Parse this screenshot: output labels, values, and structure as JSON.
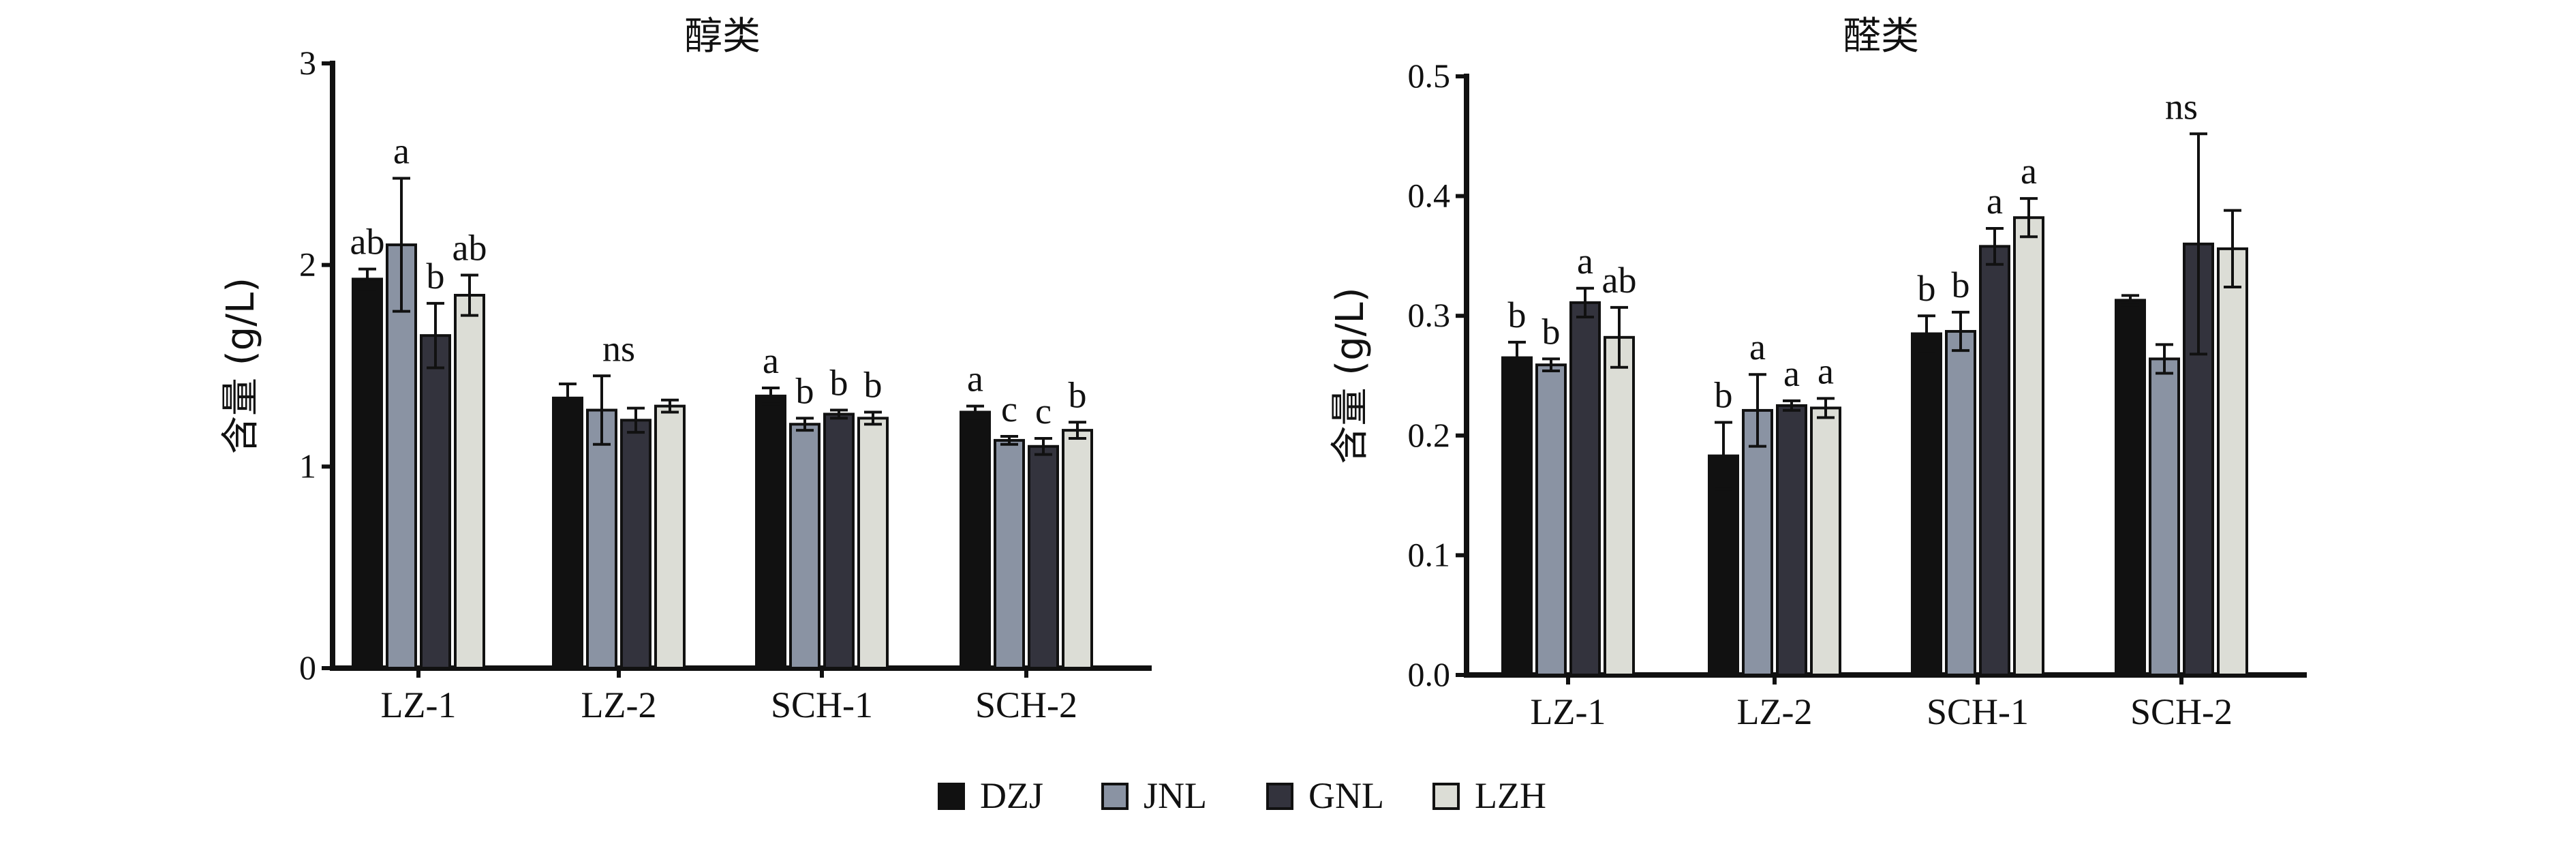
{
  "series_names": [
    "DZJ",
    "JNL",
    "GNL",
    "LZH"
  ],
  "colors": [
    "#111111",
    "#8a93a3",
    "#33333d",
    "#dcddd6"
  ],
  "chart_data": [
    {
      "type": "bar",
      "title": "醇类",
      "ylabel": "含量 (g/L)",
      "xlabel": "",
      "ylim": [
        0,
        3
      ],
      "yticks": [
        0,
        1,
        2,
        3
      ],
      "ytick_labels": [
        "0",
        "1",
        "2",
        "3"
      ],
      "categories": [
        "LZ-1",
        "LZ-2",
        "SCH-1",
        "SCH-2"
      ],
      "series": [
        {
          "name": "DZJ",
          "values": [
            1.93,
            1.34,
            1.35,
            1.27
          ],
          "errors": [
            0.05,
            0.07,
            0.04,
            0.03
          ]
        },
        {
          "name": "JNL",
          "values": [
            2.1,
            1.28,
            1.21,
            1.13
          ],
          "errors": [
            0.33,
            0.17,
            0.03,
            0.02
          ]
        },
        {
          "name": "GNL",
          "values": [
            1.65,
            1.23,
            1.26,
            1.1
          ],
          "errors": [
            0.16,
            0.06,
            0.02,
            0.04
          ]
        },
        {
          "name": "LZH",
          "values": [
            1.85,
            1.3,
            1.24,
            1.18
          ],
          "errors": [
            0.1,
            0.03,
            0.03,
            0.04
          ]
        }
      ],
      "annotations": [
        {
          "category": "LZ-1",
          "series": "DZJ",
          "text": "ab"
        },
        {
          "category": "LZ-1",
          "series": "JNL",
          "text": "a"
        },
        {
          "category": "LZ-1",
          "series": "GNL",
          "text": "b"
        },
        {
          "category": "LZ-1",
          "series": "LZH",
          "text": "ab"
        },
        {
          "category": "LZ-2",
          "text": "ns"
        },
        {
          "category": "SCH-1",
          "series": "DZJ",
          "text": "a"
        },
        {
          "category": "SCH-1",
          "series": "JNL",
          "text": "b"
        },
        {
          "category": "SCH-1",
          "series": "GNL",
          "text": "b"
        },
        {
          "category": "SCH-1",
          "series": "LZH",
          "text": "b"
        },
        {
          "category": "SCH-2",
          "series": "DZJ",
          "text": "a"
        },
        {
          "category": "SCH-2",
          "series": "JNL",
          "text": "c"
        },
        {
          "category": "SCH-2",
          "series": "GNL",
          "text": "c"
        },
        {
          "category": "SCH-2",
          "series": "LZH",
          "text": "b"
        }
      ]
    },
    {
      "type": "bar",
      "title": "醛类",
      "ylabel": "含量 (g/L)",
      "xlabel": "",
      "ylim": [
        0,
        0.5
      ],
      "yticks": [
        0,
        0.1,
        0.2,
        0.3,
        0.4,
        0.5
      ],
      "ytick_labels": [
        "0.0",
        "0.1",
        "0.2",
        "0.3",
        "0.4",
        "0.5"
      ],
      "categories": [
        "LZ-1",
        "LZ-2",
        "SCH-1",
        "SCH-2"
      ],
      "series": [
        {
          "name": "DZJ",
          "values": [
            0.265,
            0.183,
            0.285,
            0.313
          ],
          "errors": [
            0.013,
            0.028,
            0.015,
            0.004
          ]
        },
        {
          "name": "JNL",
          "values": [
            0.259,
            0.221,
            0.287,
            0.264
          ],
          "errors": [
            0.005,
            0.03,
            0.016,
            0.012
          ]
        },
        {
          "name": "GNL",
          "values": [
            0.311,
            0.225,
            0.358,
            0.36
          ],
          "errors": [
            0.012,
            0.004,
            0.015,
            0.092
          ]
        },
        {
          "name": "LZH",
          "values": [
            0.282,
            0.223,
            0.382,
            0.356
          ],
          "errors": [
            0.025,
            0.008,
            0.016,
            0.032
          ]
        }
      ],
      "annotations": [
        {
          "category": "LZ-1",
          "series": "DZJ",
          "text": "b"
        },
        {
          "category": "LZ-1",
          "series": "JNL",
          "text": "b"
        },
        {
          "category": "LZ-1",
          "series": "GNL",
          "text": "a"
        },
        {
          "category": "LZ-1",
          "series": "LZH",
          "text": "ab"
        },
        {
          "category": "LZ-2",
          "series": "DZJ",
          "text": "b"
        },
        {
          "category": "LZ-2",
          "series": "JNL",
          "text": "a"
        },
        {
          "category": "LZ-2",
          "series": "GNL",
          "text": "a"
        },
        {
          "category": "LZ-2",
          "series": "LZH",
          "text": "a"
        },
        {
          "category": "SCH-1",
          "series": "DZJ",
          "text": "b"
        },
        {
          "category": "SCH-1",
          "series": "JNL",
          "text": "b"
        },
        {
          "category": "SCH-1",
          "series": "GNL",
          "text": "a"
        },
        {
          "category": "SCH-1",
          "series": "LZH",
          "text": "a"
        },
        {
          "category": "SCH-2",
          "text": "ns"
        }
      ]
    }
  ]
}
